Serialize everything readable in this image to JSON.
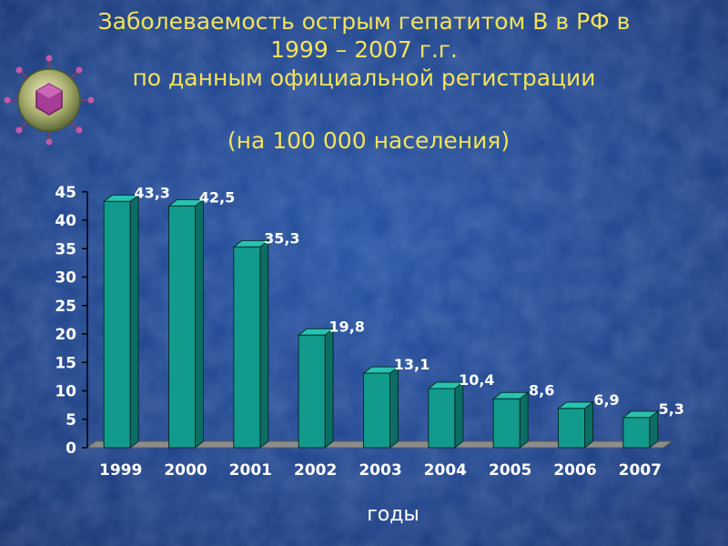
{
  "title_lines": [
    "Заболеваемость острым гепатитом В в РФ в",
    "1999 – 2007 г.г.",
    "по данным официальной регистрации"
  ],
  "subtitle": "(на 100 000 населения)",
  "colors": {
    "background": "#1c3f86",
    "title": "#f2e35a",
    "bar_front": "#129a8c",
    "text": "#ffffff"
  },
  "chart_data": {
    "type": "bar",
    "categories": [
      "1999",
      "2000",
      "2001",
      "2002",
      "2003",
      "2004",
      "2005",
      "2006",
      "2007"
    ],
    "values": [
      43.3,
      42.5,
      35.3,
      19.8,
      13.1,
      10.4,
      8.6,
      6.9,
      5.3
    ],
    "value_labels": [
      "43,3",
      "42,5",
      "35,3",
      "19,8",
      "13,1",
      "10,4",
      "8,6",
      "6,9",
      "5,3"
    ],
    "xlabel": "годы",
    "ylabel": "",
    "ylim": [
      0,
      45
    ],
    "yticks": [
      0,
      5,
      10,
      15,
      20,
      25,
      30,
      35,
      40,
      45
    ],
    "grid": false,
    "legend": "none",
    "style": "3d-columns"
  }
}
